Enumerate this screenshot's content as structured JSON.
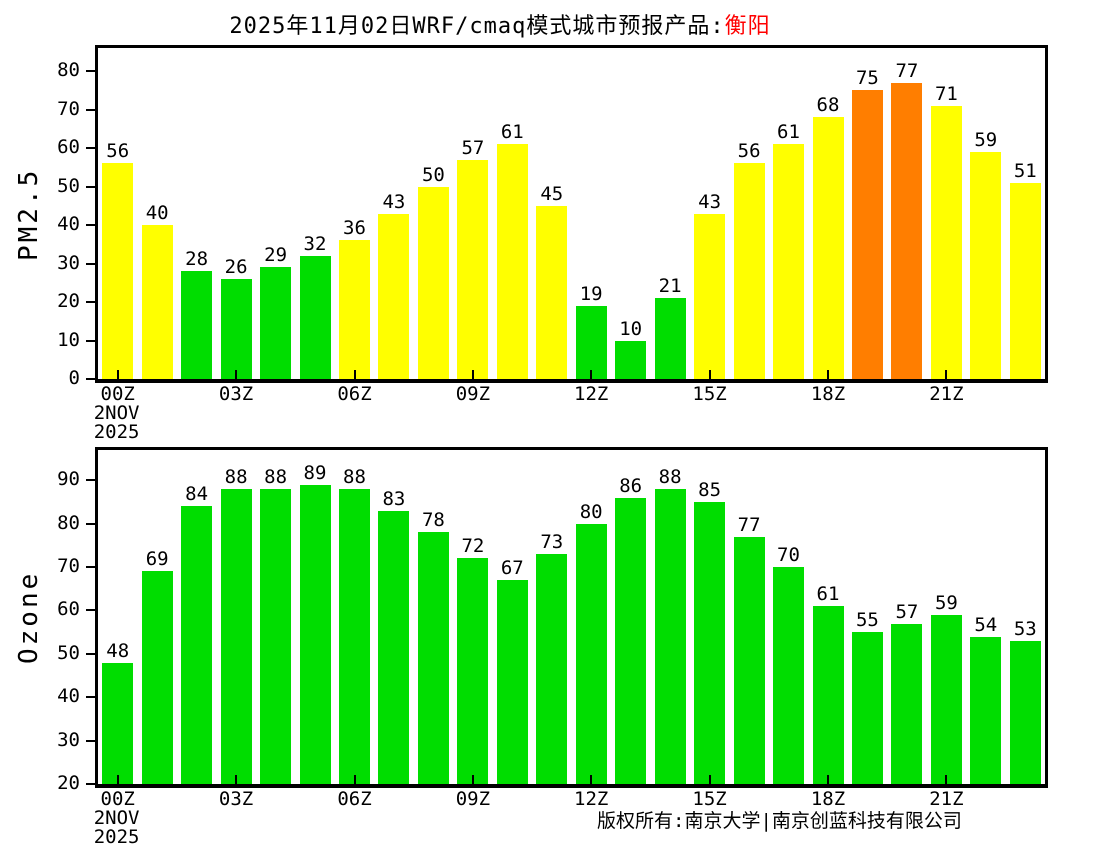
{
  "title": {
    "text": "2025年11月02日WRF/cmaq模式城市预报产品:",
    "city": "衡阳"
  },
  "footer": {
    "copyright": "版权所有:南京大学|南京创蓝科技有限公司"
  },
  "colors": {
    "green": "#00dd00",
    "yellow": "#ffff00",
    "orange": "#ff7e00",
    "title_city": "#ff0000",
    "axis": "#000000",
    "background": "#ffffff"
  },
  "chart_data": [
    {
      "type": "bar",
      "name": "pm25",
      "ylabel": "PM2.5",
      "xlabel": "",
      "ylim": [
        0,
        86
      ],
      "yticks": [
        0,
        10,
        20,
        30,
        40,
        50,
        60,
        70,
        80
      ],
      "xtick_labels": [
        "00Z",
        "03Z",
        "06Z",
        "09Z",
        "12Z",
        "15Z",
        "18Z",
        "21Z"
      ],
      "xtick_every": 3,
      "date_label": [
        "2NOV",
        "2025"
      ],
      "grid": false,
      "legend": null,
      "values": [
        56,
        40,
        28,
        26,
        29,
        32,
        36,
        43,
        50,
        57,
        61,
        45,
        19,
        10,
        21,
        43,
        56,
        61,
        68,
        75,
        77,
        71,
        59,
        51
      ],
      "bar_levels": [
        "yellow",
        "yellow",
        "green",
        "green",
        "green",
        "green",
        "yellow",
        "yellow",
        "yellow",
        "yellow",
        "yellow",
        "yellow",
        "green",
        "green",
        "green",
        "yellow",
        "yellow",
        "yellow",
        "yellow",
        "orange",
        "orange",
        "yellow",
        "yellow",
        "yellow"
      ]
    },
    {
      "type": "bar",
      "name": "ozone",
      "ylabel": "Ozone",
      "xlabel": "",
      "ylim": [
        20,
        97
      ],
      "yticks": [
        20,
        30,
        40,
        50,
        60,
        70,
        80,
        90
      ],
      "xtick_labels": [
        "00Z",
        "03Z",
        "06Z",
        "09Z",
        "12Z",
        "15Z",
        "18Z",
        "21Z"
      ],
      "xtick_every": 3,
      "date_label": [
        "2NOV",
        "2025"
      ],
      "grid": false,
      "legend": null,
      "values": [
        48,
        69,
        84,
        88,
        88,
        89,
        88,
        83,
        78,
        72,
        67,
        73,
        80,
        86,
        88,
        85,
        77,
        70,
        61,
        55,
        57,
        59,
        54,
        53
      ],
      "bar_levels": [
        "green",
        "green",
        "green",
        "green",
        "green",
        "green",
        "green",
        "green",
        "green",
        "green",
        "green",
        "green",
        "green",
        "green",
        "green",
        "green",
        "green",
        "green",
        "green",
        "green",
        "green",
        "green",
        "green",
        "green"
      ]
    }
  ]
}
